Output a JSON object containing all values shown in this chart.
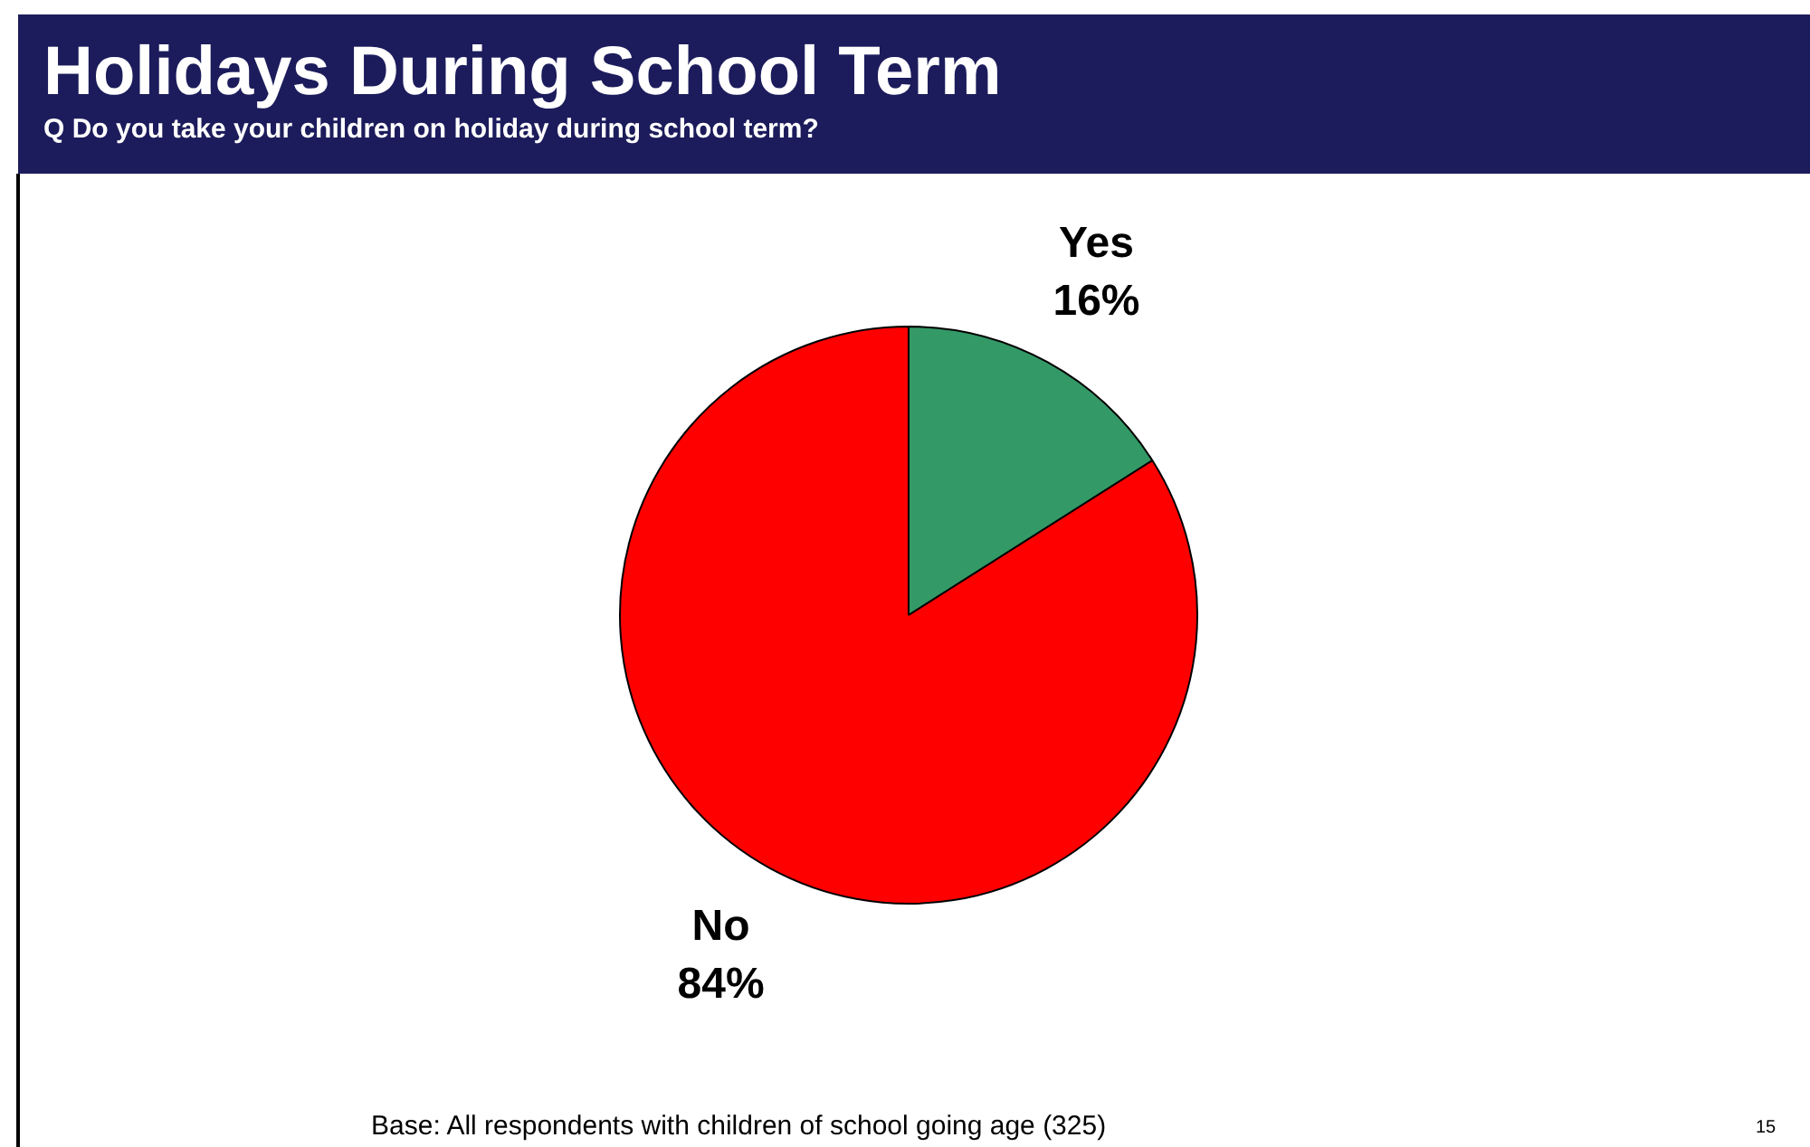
{
  "chart_data": {
    "type": "pie",
    "title": "Holidays During School Term",
    "subtitle": "Q Do you take your children on holiday during school term?",
    "categories": [
      "Yes",
      "No"
    ],
    "values": [
      16,
      84
    ],
    "value_labels": [
      "16%",
      "84%"
    ],
    "colors": [
      "#339966",
      "#ff0000"
    ],
    "legend": false,
    "annotations": [
      "Base: All respondents with children of school going age (325)",
      "15"
    ]
  }
}
